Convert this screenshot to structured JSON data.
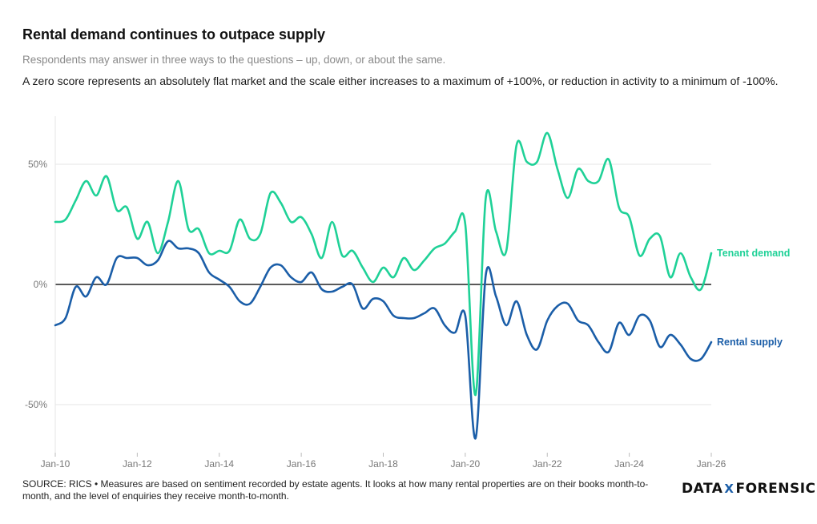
{
  "title": "Rental demand continues to outpace supply",
  "subtitle": "Respondents may answer in three ways to the questions – up, down, or about the same.",
  "description": "A zero score represents an absolutely flat market and the scale either increases to a maximum of +100%, or reduction in activity to a minimum of -100%.",
  "footer": "SOURCE: RICS • Measures are based on sentiment recorded by estate agents. It looks at how many rental properties are on their books month-to-month, and the level of enquiries they receive month-to-month.",
  "logo": {
    "left": "DATA",
    "mark": "X",
    "right": "FORENSICS"
  },
  "colors": {
    "demand": "#1fd197",
    "supply": "#1b5ea8",
    "zero": "#222222",
    "grid": "#e6e6e6"
  },
  "chart_data": {
    "type": "line",
    "title": "Rental demand continues to outpace supply",
    "xlabel": "",
    "ylabel": "",
    "x_range": [
      2010.0,
      2026.0
    ],
    "ylim": [
      -70,
      70
    ],
    "y_ticks": [
      50,
      0,
      -50
    ],
    "y_tick_labels": [
      "50%",
      "0%",
      "-50%"
    ],
    "x_ticks": [
      2010,
      2012,
      2014,
      2016,
      2018,
      2020,
      2022,
      2024,
      2026
    ],
    "x_tick_labels": [
      "Jan-10",
      "Jan-12",
      "Jan-14",
      "Jan-16",
      "Jan-18",
      "Jan-20",
      "Jan-22",
      "Jan-24",
      "Jan-26"
    ],
    "grid": true,
    "series": [
      {
        "name": "Tenant demand",
        "points": [
          [
            2010.0,
            26
          ],
          [
            2010.25,
            27
          ],
          [
            2010.5,
            35
          ],
          [
            2010.75,
            43
          ],
          [
            2011.0,
            37
          ],
          [
            2011.25,
            45
          ],
          [
            2011.5,
            31
          ],
          [
            2011.75,
            32
          ],
          [
            2012.0,
            19
          ],
          [
            2012.25,
            26
          ],
          [
            2012.5,
            13
          ],
          [
            2012.75,
            26
          ],
          [
            2013.0,
            43
          ],
          [
            2013.25,
            23
          ],
          [
            2013.5,
            23
          ],
          [
            2013.75,
            13
          ],
          [
            2014.0,
            14
          ],
          [
            2014.25,
            14
          ],
          [
            2014.5,
            27
          ],
          [
            2014.75,
            19
          ],
          [
            2015.0,
            21
          ],
          [
            2015.25,
            38
          ],
          [
            2015.5,
            34
          ],
          [
            2015.75,
            26
          ],
          [
            2016.0,
            28
          ],
          [
            2016.25,
            21
          ],
          [
            2016.5,
            11
          ],
          [
            2016.75,
            26
          ],
          [
            2017.0,
            12
          ],
          [
            2017.25,
            14
          ],
          [
            2017.5,
            7
          ],
          [
            2017.75,
            1
          ],
          [
            2018.0,
            7
          ],
          [
            2018.25,
            3
          ],
          [
            2018.5,
            11
          ],
          [
            2018.75,
            6
          ],
          [
            2019.0,
            10
          ],
          [
            2019.25,
            15
          ],
          [
            2019.5,
            17
          ],
          [
            2019.75,
            22
          ],
          [
            2020.0,
            25
          ],
          [
            2020.25,
            -46
          ],
          [
            2020.5,
            36
          ],
          [
            2020.75,
            22
          ],
          [
            2021.0,
            14
          ],
          [
            2021.25,
            58
          ],
          [
            2021.5,
            51
          ],
          [
            2021.75,
            51
          ],
          [
            2022.0,
            63
          ],
          [
            2022.25,
            48
          ],
          [
            2022.5,
            36
          ],
          [
            2022.75,
            48
          ],
          [
            2023.0,
            43
          ],
          [
            2023.25,
            43
          ],
          [
            2023.5,
            52
          ],
          [
            2023.75,
            32
          ],
          [
            2024.0,
            28
          ],
          [
            2024.25,
            12
          ],
          [
            2024.5,
            19
          ],
          [
            2024.75,
            20
          ],
          [
            2025.0,
            3
          ],
          [
            2025.25,
            13
          ],
          [
            2025.5,
            3
          ],
          [
            2025.75,
            -2
          ],
          [
            2026.0,
            13
          ]
        ]
      },
      {
        "name": "Rental supply",
        "points": [
          [
            2010.0,
            -17
          ],
          [
            2010.25,
            -14
          ],
          [
            2010.5,
            -1
          ],
          [
            2010.75,
            -5
          ],
          [
            2011.0,
            3
          ],
          [
            2011.25,
            0
          ],
          [
            2011.5,
            11
          ],
          [
            2011.75,
            11
          ],
          [
            2012.0,
            11
          ],
          [
            2012.25,
            8
          ],
          [
            2012.5,
            10
          ],
          [
            2012.75,
            18
          ],
          [
            2013.0,
            15
          ],
          [
            2013.25,
            15
          ],
          [
            2013.5,
            13
          ],
          [
            2013.75,
            5
          ],
          [
            2014.0,
            2
          ],
          [
            2014.25,
            -1
          ],
          [
            2014.5,
            -7
          ],
          [
            2014.75,
            -8
          ],
          [
            2015.0,
            -1
          ],
          [
            2015.25,
            7
          ],
          [
            2015.5,
            8
          ],
          [
            2015.75,
            3
          ],
          [
            2016.0,
            1
          ],
          [
            2016.25,
            5
          ],
          [
            2016.5,
            -2
          ],
          [
            2016.75,
            -3
          ],
          [
            2017.0,
            -1
          ],
          [
            2017.25,
            0
          ],
          [
            2017.5,
            -10
          ],
          [
            2017.75,
            -6
          ],
          [
            2018.0,
            -7
          ],
          [
            2018.25,
            -13
          ],
          [
            2018.5,
            -14
          ],
          [
            2018.75,
            -14
          ],
          [
            2019.0,
            -12
          ],
          [
            2019.25,
            -10
          ],
          [
            2019.5,
            -17
          ],
          [
            2019.75,
            -20
          ],
          [
            2020.0,
            -13
          ],
          [
            2020.25,
            -64
          ],
          [
            2020.5,
            4
          ],
          [
            2020.75,
            -5
          ],
          [
            2021.0,
            -17
          ],
          [
            2021.25,
            -7
          ],
          [
            2021.5,
            -21
          ],
          [
            2021.75,
            -27
          ],
          [
            2022.0,
            -15
          ],
          [
            2022.25,
            -9
          ],
          [
            2022.5,
            -8
          ],
          [
            2022.75,
            -15
          ],
          [
            2023.0,
            -17
          ],
          [
            2023.25,
            -24
          ],
          [
            2023.5,
            -28
          ],
          [
            2023.75,
            -16
          ],
          [
            2024.0,
            -21
          ],
          [
            2024.25,
            -13
          ],
          [
            2024.5,
            -15
          ],
          [
            2024.75,
            -26
          ],
          [
            2025.0,
            -21
          ],
          [
            2025.25,
            -25
          ],
          [
            2025.5,
            -31
          ],
          [
            2025.75,
            -31
          ],
          [
            2026.0,
            -24
          ]
        ]
      }
    ]
  }
}
